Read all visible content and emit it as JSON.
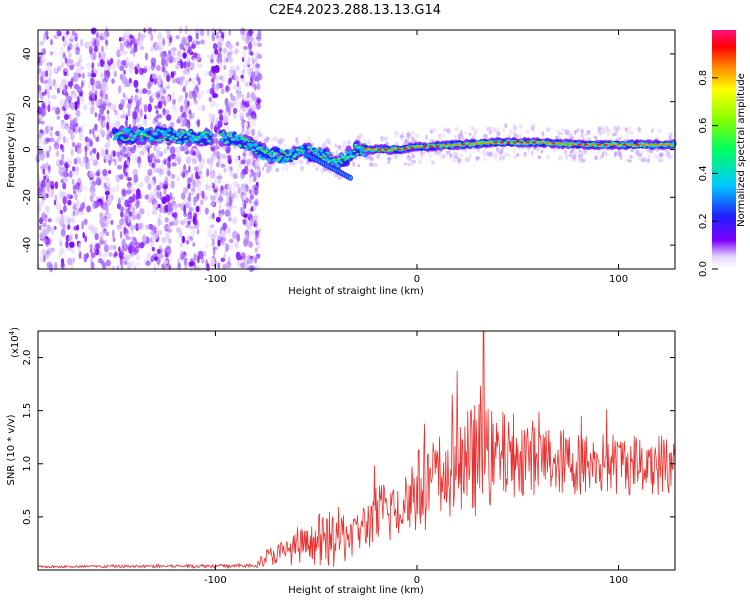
{
  "figure": {
    "title": "C2E4.2023.288.13.13.G14"
  },
  "chart_data": [
    {
      "type": "heatmap",
      "title": "C2E4.2023.288.13.13.G14",
      "xlabel": "Height of straight line (km)",
      "ylabel": "Frequency (Hz)",
      "xlim": [
        -188,
        128
      ],
      "ylim": [
        -50,
        50
      ],
      "x_ticks": [
        -100,
        0,
        100
      ],
      "y_ticks": [
        -40,
        -20,
        0,
        20,
        40
      ],
      "x_tick_labels": [
        "-100",
        "0",
        "100"
      ],
      "y_tick_labels": [
        "-40",
        "-20",
        "0",
        "20",
        "40"
      ],
      "colorbar": {
        "label": "Normalized spectral amplitude",
        "range": [
          0,
          1
        ],
        "ticks": [
          0.0,
          0.2,
          0.4,
          0.6,
          0.8
        ],
        "tick_labels": [
          "0.0",
          "0.2",
          "0.4",
          "0.6",
          "0.8"
        ]
      },
      "ridge": {
        "x": [
          -150,
          -130,
          -110,
          -95,
          -85,
          -75,
          -65,
          -55,
          -45,
          -38,
          -30,
          -20,
          -10,
          0,
          20,
          40,
          60,
          80,
          100,
          128
        ],
        "frequency": [
          6,
          6,
          5,
          5,
          3,
          -2,
          -3,
          -1,
          -3,
          -5,
          0,
          0,
          0,
          1,
          2,
          3,
          3,
          2,
          2,
          2
        ]
      }
    },
    {
      "type": "line",
      "xlabel": "Height of straight line (km)",
      "ylabel": "SNR (10 * v/v)",
      "y_scale_label": "(x10",
      "y_scale_exponent": "4",
      "y_scale_suffix": ")",
      "xlim": [
        -188,
        128
      ],
      "ylim": [
        0,
        2.25
      ],
      "x_ticks": [
        -100,
        0,
        100
      ],
      "y_ticks": [
        0.5,
        1.0,
        1.5,
        2.0
      ],
      "x_tick_labels": [
        "-100",
        "0",
        "100"
      ],
      "y_tick_labels": [
        "0.5",
        "1.0",
        "1.5",
        "2.0"
      ],
      "series": [
        {
          "name": "SNR",
          "color": "#e8312f",
          "envelope_x": [
            -188,
            -80,
            -75,
            -50,
            -40,
            -30,
            -20,
            -10,
            0,
            10,
            20,
            30,
            40,
            50,
            60,
            80,
            100,
            128
          ],
          "envelope_mean": [
            0.03,
            0.04,
            0.12,
            0.25,
            0.3,
            0.35,
            0.5,
            0.6,
            0.75,
            0.85,
            0.95,
            1.05,
            1.05,
            1.1,
            1.05,
            1.0,
            1.0,
            1.0
          ],
          "envelope_spread": [
            0.01,
            0.02,
            0.08,
            0.2,
            0.3,
            0.2,
            0.3,
            0.35,
            0.4,
            0.45,
            0.5,
            0.55,
            0.45,
            0.4,
            0.35,
            0.3,
            0.3,
            0.3
          ],
          "peak": {
            "x": 33,
            "y": 2.25
          }
        }
      ]
    }
  ]
}
